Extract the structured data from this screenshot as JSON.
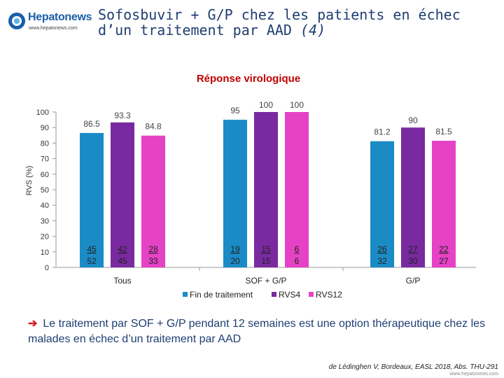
{
  "header": {
    "logo_name": "Hepatonews",
    "logo_url": "www.hepatonews.com",
    "title_line1": "Sofosbuvir + G/P chez les patients en échec",
    "title_line2_main": "d’un traitement par AAD",
    "title_line2_suffix": "(4)"
  },
  "colors": {
    "fin_de_traitement": "#1b8bc6",
    "rvs4": "#7a2aa0",
    "rvs12": "#e542c5",
    "title": "#1f3e72",
    "chart_title": "#c00000"
  },
  "chart_data": {
    "type": "bar",
    "title": "Réponse virologique",
    "ylabel": "RVS (%)",
    "xlabel": "",
    "ylim": [
      0,
      100
    ],
    "yticks": [
      0,
      10,
      20,
      30,
      40,
      50,
      60,
      70,
      80,
      90,
      100
    ],
    "categories": [
      "Tous",
      "SOF + G/P",
      "G/P"
    ],
    "series": [
      {
        "name": "Fin de traitement",
        "values": [
          86.5,
          95,
          81.2
        ],
        "value_labels": [
          "86.5",
          "95",
          "81.2"
        ],
        "numerators": [
          "45",
          "19",
          "26"
        ],
        "denominators": [
          "52",
          "20",
          "32"
        ]
      },
      {
        "name": "RVS4",
        "values": [
          93.3,
          100,
          90
        ],
        "value_labels": [
          "93.3",
          "100",
          "90"
        ],
        "numerators": [
          "42",
          "15",
          "27"
        ],
        "denominators": [
          "45",
          "15",
          "30"
        ]
      },
      {
        "name": "RVS12",
        "values": [
          84.8,
          100,
          81.5
        ],
        "value_labels": [
          "84.8",
          "100",
          "81.5"
        ],
        "numerators": [
          "28",
          "6",
          "22"
        ],
        "denominators": [
          "33",
          "6",
          "27"
        ]
      }
    ]
  },
  "conclusion": {
    "arrow": "➔",
    "text": "Le traitement par SOF + G/P pendant 12 semaines est une option thérapeutique chez les malades en échec d’un traitement par AAD"
  },
  "citation": "de Lédinghen V, Bordeaux, EASL 2018, Abs. THU-291",
  "site_url": "www.hepatonews.com"
}
